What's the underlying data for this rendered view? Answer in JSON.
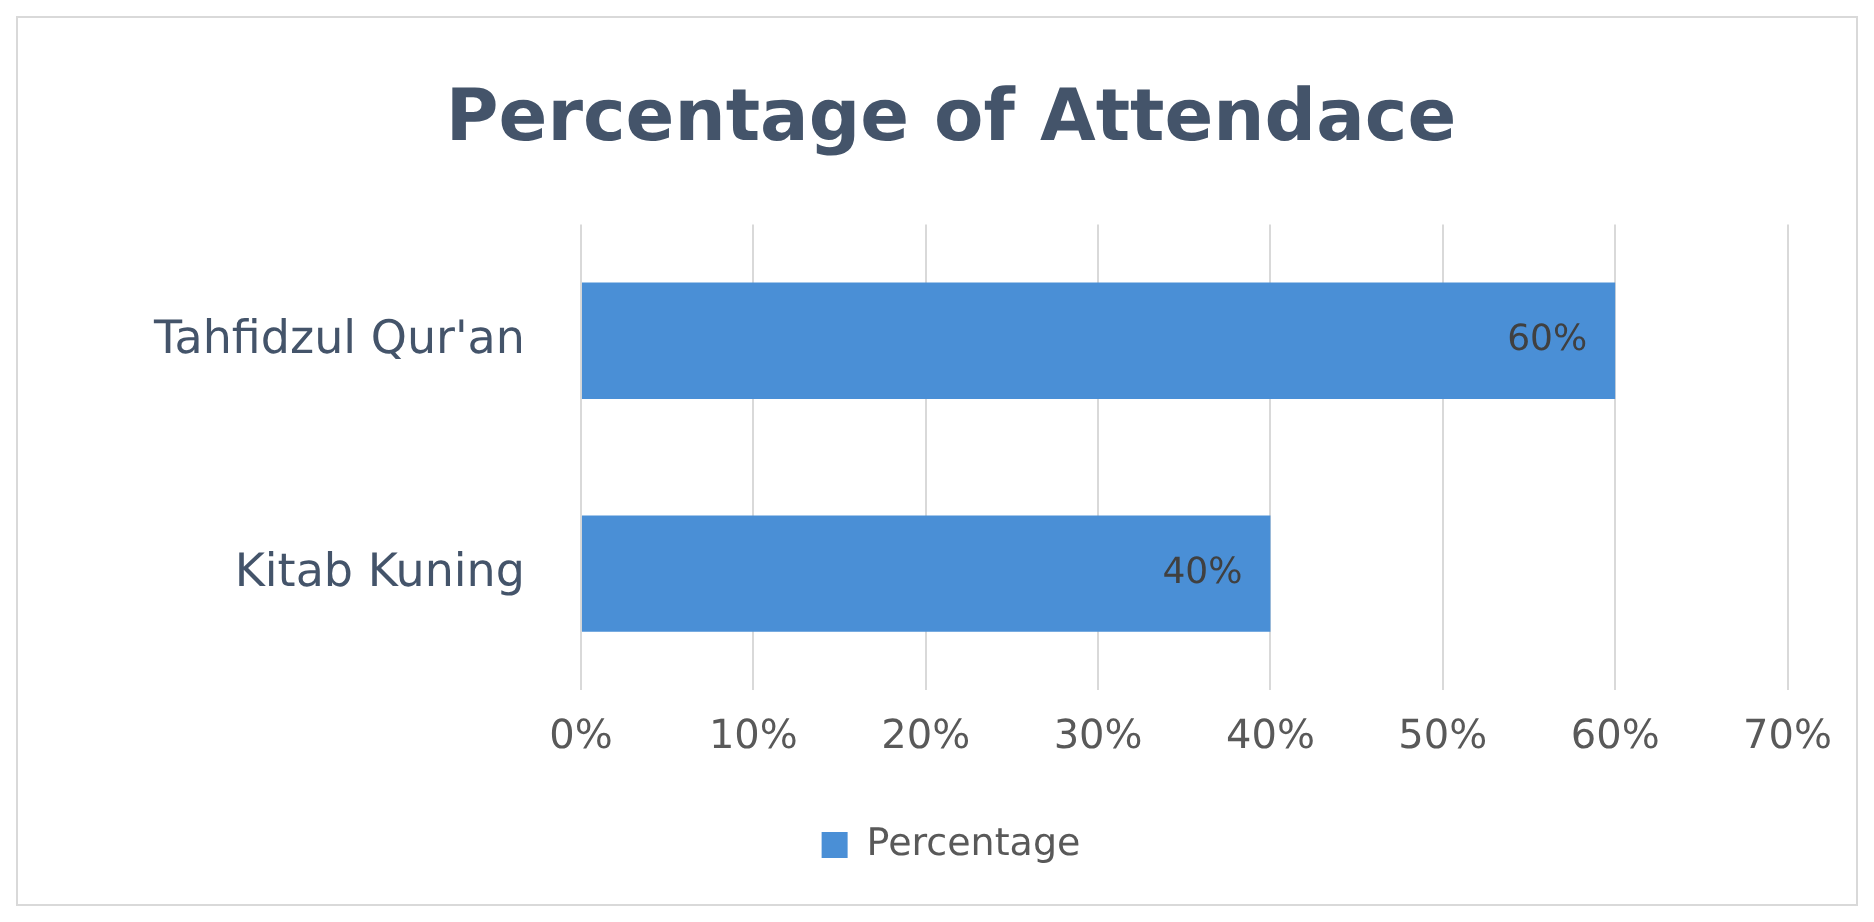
{
  "chart_data": {
    "type": "bar",
    "orientation": "horizontal",
    "title": "Percentage of Attendace",
    "categories": [
      "Tahfidzul Qur'an",
      "Kitab Kuning"
    ],
    "series": [
      {
        "name": "Percentage",
        "color": "#4a8fd6",
        "values": [
          60,
          40
        ],
        "value_labels": [
          "60%",
          "40%"
        ]
      }
    ],
    "xlim": [
      0,
      70
    ],
    "xticks": [
      {
        "value": 0,
        "label": "0%"
      },
      {
        "value": 10,
        "label": "10%"
      },
      {
        "value": 20,
        "label": "20%"
      },
      {
        "value": 30,
        "label": "30%"
      },
      {
        "value": 40,
        "label": "40%"
      },
      {
        "value": 50,
        "label": "50%"
      },
      {
        "value": 60,
        "label": "60%"
      },
      {
        "value": 70,
        "label": "70%"
      }
    ],
    "grid": "x",
    "legend": "bottom"
  }
}
